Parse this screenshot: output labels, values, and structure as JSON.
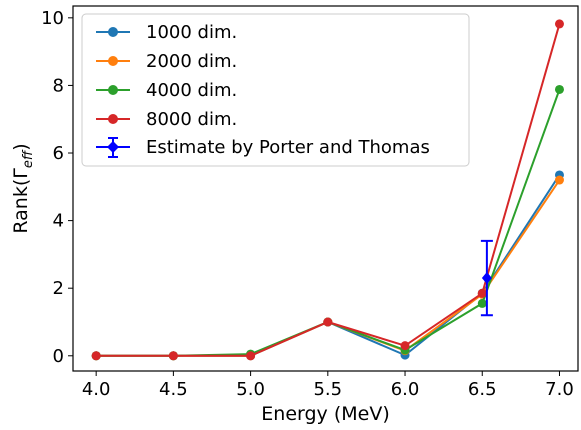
{
  "chart_data": {
    "type": "line",
    "xlabel": "Energy (MeV)",
    "ylabel_main": "Rank(Γ",
    "ylabel_sub": "eff",
    "ylabel_close": ")",
    "xlim": [
      3.85,
      7.12
    ],
    "ylim": [
      -0.45,
      10.35
    ],
    "xticks": [
      4.0,
      4.5,
      5.0,
      5.5,
      6.0,
      6.5,
      7.0
    ],
    "xtick_labels": [
      "4.0",
      "4.5",
      "5.0",
      "5.5",
      "6.0",
      "6.5",
      "7.0"
    ],
    "yticks": [
      0,
      2,
      4,
      6,
      8,
      10
    ],
    "ytick_labels": [
      "0",
      "2",
      "4",
      "6",
      "8",
      "10"
    ],
    "grid": false,
    "legend_position": "upper-left",
    "x": [
      4.0,
      4.5,
      5.0,
      5.5,
      6.0,
      6.5,
      7.0
    ],
    "series": [
      {
        "name": "1000 dim.",
        "color": "#1f77b4",
        "values": [
          0.0,
          0.0,
          0.0,
          1.0,
          0.02,
          1.85,
          5.35
        ]
      },
      {
        "name": "2000 dim.",
        "color": "#ff7f0e",
        "values": [
          0.0,
          0.0,
          0.0,
          1.0,
          0.15,
          1.82,
          5.2
        ]
      },
      {
        "name": "4000 dim.",
        "color": "#2ca02c",
        "values": [
          0.0,
          0.0,
          0.05,
          1.0,
          0.17,
          1.55,
          7.88
        ]
      },
      {
        "name": "8000 dim.",
        "color": "#d62728",
        "values": [
          0.0,
          0.0,
          0.0,
          1.0,
          0.3,
          1.85,
          9.82
        ]
      }
    ],
    "errorbar_series": {
      "name": "Estimate by Porter and Thomas",
      "color": "#0000ff",
      "x": 6.53,
      "y": 2.3,
      "y_low": 1.2,
      "y_high": 3.4
    }
  }
}
